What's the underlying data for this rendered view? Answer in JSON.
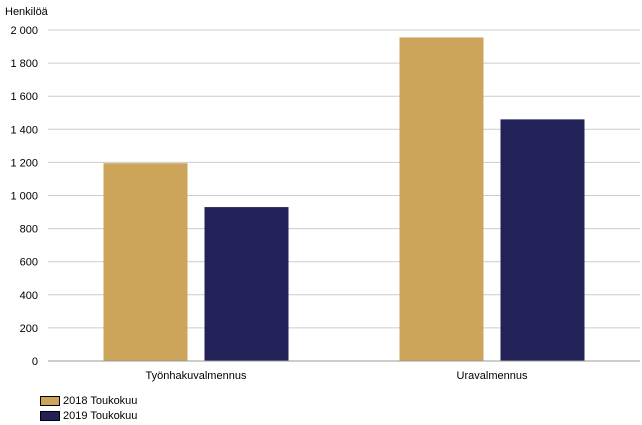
{
  "chart_data": {
    "type": "bar",
    "title": "",
    "ylabel": "Henkilöä",
    "xlabel": "",
    "categories": [
      "Työnhakuvalmennus",
      "Uravalmennus"
    ],
    "series": [
      {
        "name": "2018 Toukokuu",
        "values": [
          1195,
          1955
        ],
        "color": "#cca55a"
      },
      {
        "name": "2019 Toukokuu",
        "values": [
          930,
          1460
        ],
        "color": "#222258"
      }
    ],
    "ylim": [
      0,
      2000
    ],
    "yticks": [
      0,
      200,
      400,
      600,
      800,
      1000,
      1200,
      1400,
      1600,
      1800,
      2000
    ],
    "ytick_labels": [
      "0",
      "200",
      "400",
      "600",
      "800",
      "1 000",
      "1 200",
      "1 400",
      "1 600",
      "1 800",
      "2 000"
    ],
    "grid": true,
    "legend": "bottom-left"
  }
}
